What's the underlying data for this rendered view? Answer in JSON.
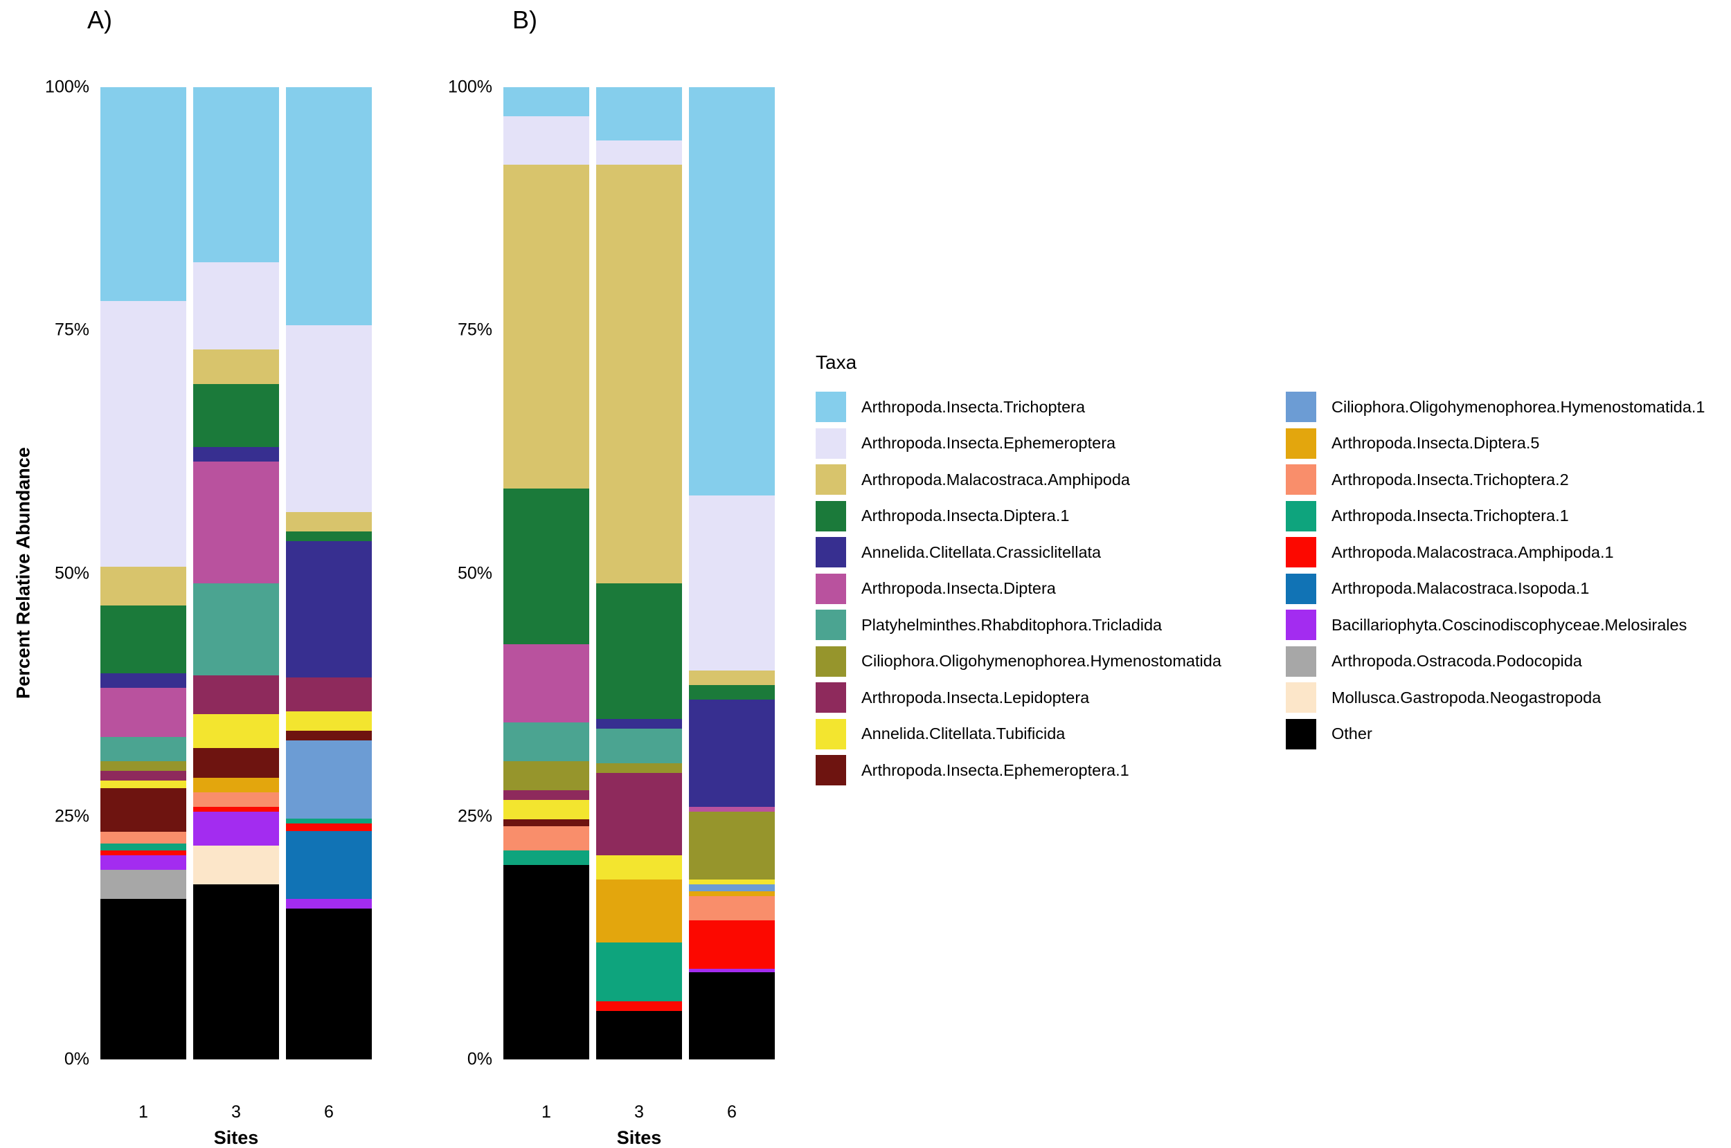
{
  "legend_title": "Taxa",
  "taxa": [
    {
      "name": "Arthropoda.Insecta.Trichoptera",
      "color": "#85CEEC"
    },
    {
      "name": "Arthropoda.Insecta.Ephemeroptera",
      "color": "#E4E2F8"
    },
    {
      "name": "Arthropoda.Malacostraca.Amphipoda",
      "color": "#D8C46C"
    },
    {
      "name": "Arthropoda.Insecta.Diptera.1",
      "color": "#1B7A3A"
    },
    {
      "name": "Annelida.Clitellata.Crassiclitellata",
      "color": "#372F90"
    },
    {
      "name": "Arthropoda.Insecta.Diptera",
      "color": "#B9529E"
    },
    {
      "name": "Platyhelminthes.Rhabditophora.Tricladida",
      "color": "#4BA491"
    },
    {
      "name": "Ciliophora.Oligohymenophorea.Hymenostomatida",
      "color": "#96952C"
    },
    {
      "name": "Arthropoda.Insecta.Lepidoptera",
      "color": "#8E2A5C"
    },
    {
      "name": "Annelida.Clitellata.Tubificida",
      "color": "#F3E52F"
    },
    {
      "name": "Arthropoda.Insecta.Ephemeroptera.1",
      "color": "#6E1410"
    },
    {
      "name": "Ciliophora.Oligohymenophorea.Hymenostomatida.1",
      "color": "#6C9CD4"
    },
    {
      "name": "Arthropoda.Insecta.Diptera.5",
      "color": "#E3A60D"
    },
    {
      "name": "Arthropoda.Insecta.Trichoptera.2",
      "color": "#F98E6B"
    },
    {
      "name": "Arthropoda.Insecta.Trichoptera.1",
      "color": "#0EA47D"
    },
    {
      "name": "Arthropoda.Malacostraca.Amphipoda.1",
      "color": "#FC0800"
    },
    {
      "name": "Arthropoda.Malacostraca.Isopoda.1",
      "color": "#1173B5"
    },
    {
      "name": "Bacillariophyta.Coscinodiscophyceae.Melosirales",
      "color": "#A32CF0"
    },
    {
      "name": "Arthropoda.Ostracoda.Podocopida",
      "color": "#A7A7A7"
    },
    {
      "name": "Mollusca.Gastropoda.Neogastropoda",
      "color": "#FCE6C9"
    },
    {
      "name": "Other",
      "color": "#000000"
    }
  ],
  "chart_data": [
    {
      "type": "bar",
      "stacked": true,
      "panel": "A",
      "title": "A)",
      "xlabel": "Sites",
      "ylabel": "Percent Relative Abundance",
      "categories": [
        "1",
        "3",
        "6"
      ],
      "ylim": [
        0,
        100
      ],
      "yticks": [
        "0%",
        "25%",
        "50%",
        "75%",
        "100%"
      ],
      "units": "percent",
      "series": [
        {
          "name": "Arthropoda.Insecta.Trichoptera",
          "values": [
            22,
            18,
            24.5
          ]
        },
        {
          "name": "Arthropoda.Insecta.Ephemeroptera",
          "values": [
            27.3,
            9,
            19.2
          ]
        },
        {
          "name": "Arthropoda.Malacostraca.Amphipoda",
          "values": [
            4,
            3.5,
            2
          ]
        },
        {
          "name": "Arthropoda.Insecta.Diptera.1",
          "values": [
            7,
            6.5,
            1
          ]
        },
        {
          "name": "Annelida.Clitellata.Crassiclitellata",
          "values": [
            1.5,
            1.5,
            14
          ]
        },
        {
          "name": "Arthropoda.Insecta.Diptera",
          "values": [
            5,
            12.5,
            0
          ]
        },
        {
          "name": "Platyhelminthes.Rhabditophora.Tricladida",
          "values": [
            2.5,
            9.5,
            0
          ]
        },
        {
          "name": "Ciliophora.Oligohymenophorea.Hymenostomatida",
          "values": [
            1,
            0,
            0
          ]
        },
        {
          "name": "Arthropoda.Insecta.Lepidoptera",
          "values": [
            1,
            4,
            3.5
          ]
        },
        {
          "name": "Annelida.Clitellata.Tubificida",
          "values": [
            0.8,
            3.5,
            2
          ]
        },
        {
          "name": "Arthropoda.Insecta.Ephemeroptera.1",
          "values": [
            4.5,
            3,
            1
          ]
        },
        {
          "name": "Ciliophora.Oligohymenophorea.Hymenostomatida.1",
          "values": [
            0,
            0,
            8
          ]
        },
        {
          "name": "Arthropoda.Insecta.Diptera.5",
          "values": [
            0,
            1.5,
            0
          ]
        },
        {
          "name": "Arthropoda.Insecta.Trichoptera.2",
          "values": [
            1.2,
            1.5,
            0
          ]
        },
        {
          "name": "Arthropoda.Insecta.Trichoptera.1",
          "values": [
            0.7,
            0,
            0.5
          ]
        },
        {
          "name": "Arthropoda.Malacostraca.Amphipoda.1",
          "values": [
            0.5,
            0.5,
            0.8
          ]
        },
        {
          "name": "Arthropoda.Malacostraca.Isopoda.1",
          "values": [
            0,
            0,
            7
          ]
        },
        {
          "name": "Bacillariophyta.Coscinodiscophyceae.Melosirales",
          "values": [
            1.5,
            3.5,
            1
          ]
        },
        {
          "name": "Arthropoda.Ostracoda.Podocopida",
          "values": [
            3,
            0,
            0
          ]
        },
        {
          "name": "Mollusca.Gastropoda.Neogastropoda",
          "values": [
            0,
            4,
            0
          ]
        },
        {
          "name": "Other",
          "values": [
            16.5,
            18,
            15.5
          ]
        }
      ]
    },
    {
      "type": "bar",
      "stacked": true,
      "panel": "B",
      "title": "B)",
      "xlabel": "Sites",
      "ylabel": "Percent Relative Abundance",
      "categories": [
        "1",
        "3",
        "6"
      ],
      "ylim": [
        0,
        100
      ],
      "yticks": [
        "0%",
        "25%",
        "50%",
        "75%",
        "100%"
      ],
      "units": "percent",
      "series": [
        {
          "name": "Arthropoda.Insecta.Trichoptera",
          "values": [
            3,
            5.5,
            42
          ]
        },
        {
          "name": "Arthropoda.Insecta.Ephemeroptera",
          "values": [
            5,
            2.5,
            18
          ]
        },
        {
          "name": "Arthropoda.Malacostraca.Amphipoda",
          "values": [
            33.3,
            43,
            1.5
          ]
        },
        {
          "name": "Arthropoda.Insecta.Diptera.1",
          "values": [
            16,
            14,
            1.5
          ]
        },
        {
          "name": "Annelida.Clitellata.Crassiclitellata",
          "values": [
            0,
            1,
            11
          ]
        },
        {
          "name": "Arthropoda.Insecta.Diptera",
          "values": [
            8,
            0,
            0.5
          ]
        },
        {
          "name": "Platyhelminthes.Rhabditophora.Tricladida",
          "values": [
            4,
            3.5,
            0
          ]
        },
        {
          "name": "Ciliophora.Oligohymenophorea.Hymenostomatida",
          "values": [
            3,
            1,
            7
          ]
        },
        {
          "name": "Arthropoda.Insecta.Lepidoptera",
          "values": [
            1,
            8.5,
            0
          ]
        },
        {
          "name": "Annelida.Clitellata.Tubificida",
          "values": [
            2,
            2.5,
            0.5
          ]
        },
        {
          "name": "Arthropoda.Insecta.Ephemeroptera.1",
          "values": [
            0.7,
            0,
            0
          ]
        },
        {
          "name": "Ciliophora.Oligohymenophorea.Hymenostomatida.1",
          "values": [
            0,
            0,
            0.7
          ]
        },
        {
          "name": "Arthropoda.Insecta.Diptera.5",
          "values": [
            0,
            6.5,
            0.5
          ]
        },
        {
          "name": "Arthropoda.Insecta.Trichoptera.2",
          "values": [
            2.5,
            0,
            2.5
          ]
        },
        {
          "name": "Arthropoda.Insecta.Trichoptera.1",
          "values": [
            1.5,
            6,
            0
          ]
        },
        {
          "name": "Arthropoda.Malacostraca.Amphipoda.1",
          "values": [
            0,
            1,
            5
          ]
        },
        {
          "name": "Arthropoda.Malacostraca.Isopoda.1",
          "values": [
            0,
            0,
            0
          ]
        },
        {
          "name": "Bacillariophyta.Coscinodiscophyceae.Melosirales",
          "values": [
            0,
            0,
            0.3
          ]
        },
        {
          "name": "Arthropoda.Ostracoda.Podocopida",
          "values": [
            0,
            0,
            0
          ]
        },
        {
          "name": "Mollusca.Gastropoda.Neogastropoda",
          "values": [
            0,
            0,
            0
          ]
        },
        {
          "name": "Other",
          "values": [
            20,
            5,
            9
          ]
        }
      ]
    }
  ]
}
